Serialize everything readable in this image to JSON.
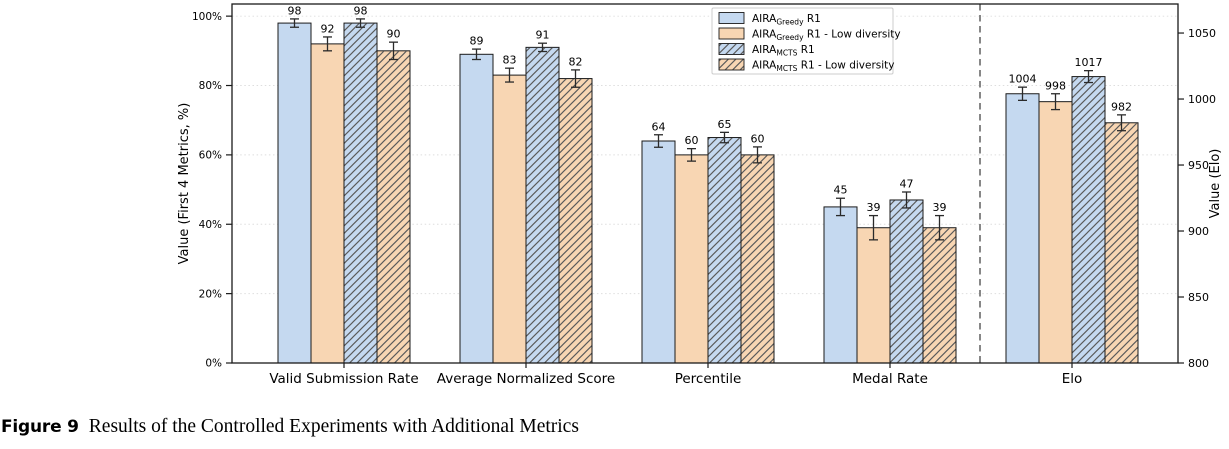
{
  "caption": {
    "label": "Figure 9",
    "text": "Results of the Controlled Experiments with Additional Metrics"
  },
  "chart_data": {
    "type": "bar",
    "title": "",
    "categories": [
      "Valid Submission Rate",
      "Average Normalized Score",
      "Percentile",
      "Medal Rate",
      "Elo"
    ],
    "series": [
      {
        "name": "AIRA_Greedy R1",
        "name_parts": {
          "base": "AIRA",
          "sub": "Greedy",
          "rest": " R1"
        },
        "fill": "#c5d9f0",
        "hatch": false,
        "values": [
          98,
          89,
          64,
          45,
          1004
        ],
        "errors": [
          1.2,
          1.5,
          1.8,
          2.5,
          5
        ]
      },
      {
        "name": "AIRA_Greedy R1 - Low diversity",
        "name_parts": {
          "base": "AIRA",
          "sub": "Greedy",
          "rest": " R1 - Low diversity"
        },
        "fill": "#f8d6b3",
        "hatch": false,
        "values": [
          92,
          83,
          60,
          39,
          998
        ],
        "errors": [
          2.0,
          2.0,
          1.8,
          3.5,
          6
        ]
      },
      {
        "name": "AIRA_MCTS R1",
        "name_parts": {
          "base": "AIRA",
          "sub": "MCTS",
          "rest": " R1"
        },
        "fill": "#c5d9f0",
        "hatch": true,
        "values": [
          98,
          91,
          65,
          47,
          1017
        ],
        "errors": [
          1.2,
          1.2,
          1.5,
          2.3,
          4.5
        ]
      },
      {
        "name": "AIRA_MCTS R1 - Low diversity",
        "name_parts": {
          "base": "AIRA",
          "sub": "MCTS",
          "rest": " R1 - Low diversity"
        },
        "fill": "#f8d6b3",
        "hatch": true,
        "values": [
          90,
          82,
          60,
          39,
          982
        ],
        "errors": [
          2.5,
          2.5,
          2.3,
          3.5,
          6
        ]
      }
    ],
    "value_labels": [
      [
        "98",
        "89",
        "64",
        "45",
        "1004"
      ],
      [
        "92",
        "83",
        "60",
        "39",
        "998"
      ],
      [
        "98",
        "91",
        "65",
        "47",
        "1017"
      ],
      [
        "90",
        "82",
        "60",
        "39",
        "982"
      ]
    ],
    "left_axis": {
      "label": "Value (First 4 Metrics, %)",
      "tick_labels": [
        "0%",
        "20%",
        "40%",
        "60%",
        "80%",
        "100%"
      ],
      "tick_values": [
        0,
        20,
        40,
        60,
        80,
        100
      ],
      "range": [
        0,
        103.5
      ]
    },
    "right_axis": {
      "label": "Value (Elo)",
      "tick_labels": [
        "800",
        "850",
        "900",
        "950",
        "1000",
        "1050"
      ],
      "tick_values": [
        800,
        850,
        900,
        950,
        1000,
        1050
      ],
      "range": [
        800,
        1072
      ]
    },
    "elo_category_index": 4,
    "separator": {
      "style": "dashed",
      "between": [
        "Medal Rate",
        "Elo"
      ]
    },
    "legend_position": "top-center-inside",
    "grid": "horizontal-dotted",
    "colors": {
      "bar_edge": "#1a1a1a",
      "hatch_line": "#5a5a5a",
      "error_bar": "#2a2a2a",
      "gridline": "#dedede",
      "separator": "#7a7a7a",
      "spine": "#1a1a1a",
      "legend_border": "#cccccc",
      "legend_bg": "#ffffff",
      "text": "#000000"
    }
  }
}
